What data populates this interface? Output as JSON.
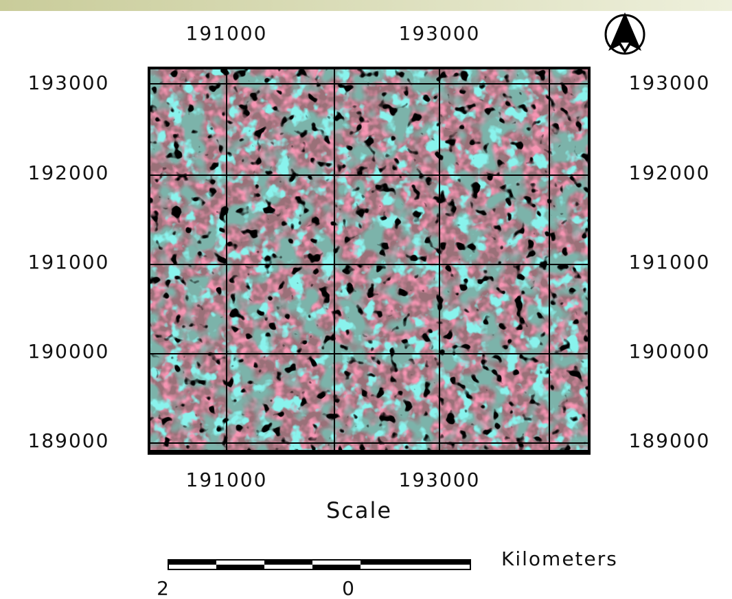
{
  "top_labels": [
    "191000",
    "193000"
  ],
  "left_labels": [
    "193000",
    "192000",
    "191000",
    "190000",
    "189000"
  ],
  "right_labels": [
    "193000",
    "192000",
    "191000",
    "190000",
    "189000"
  ],
  "bottom_labels": [
    "191000",
    "193000"
  ],
  "scale": {
    "title": "Scale",
    "unit": "Kilometers",
    "tick_labels": [
      "2",
      "0"
    ]
  }
}
